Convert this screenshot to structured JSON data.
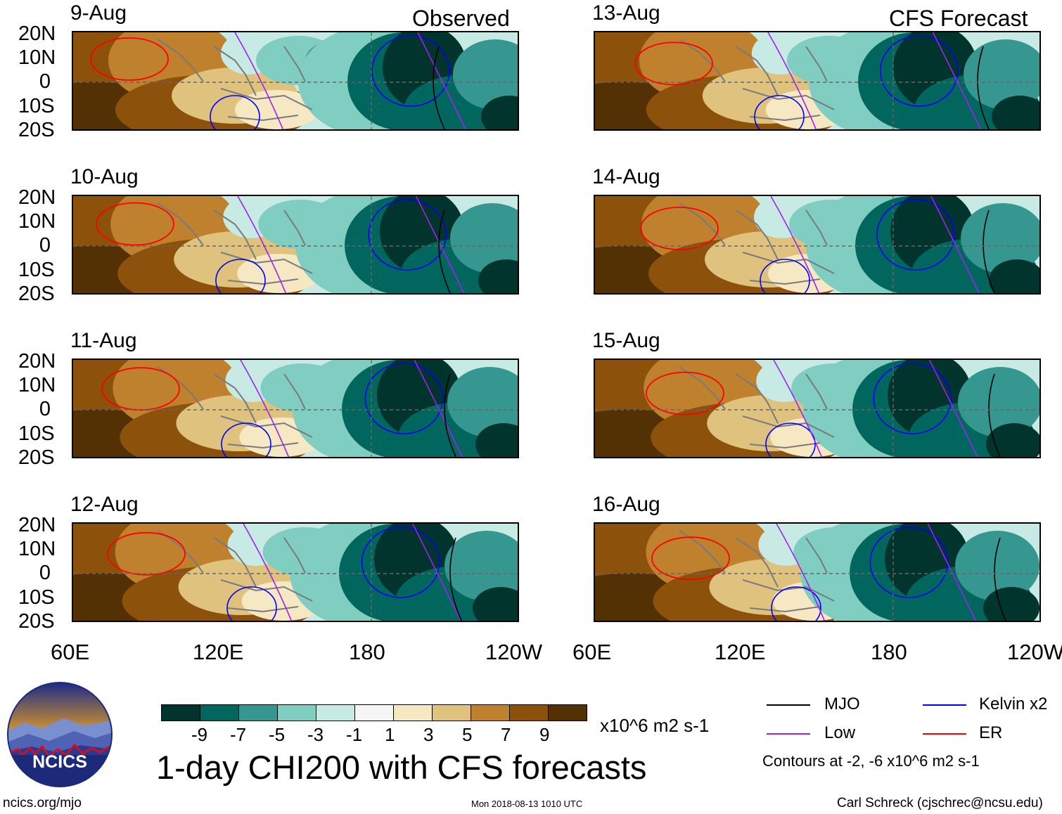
{
  "headers": {
    "observed": "Observed",
    "forecast": "CFS Forecast"
  },
  "panels": [
    {
      "date": "9-Aug",
      "col": 0,
      "row": 0,
      "shift": 0
    },
    {
      "date": "10-Aug",
      "col": 0,
      "row": 1,
      "shift": 8
    },
    {
      "date": "11-Aug",
      "col": 0,
      "row": 2,
      "shift": 16
    },
    {
      "date": "12-Aug",
      "col": 0,
      "row": 3,
      "shift": 24
    },
    {
      "date": "13-Aug",
      "col": 1,
      "row": 0,
      "shift": 32
    },
    {
      "date": "14-Aug",
      "col": 1,
      "row": 1,
      "shift": 40
    },
    {
      "date": "15-Aug",
      "col": 1,
      "row": 2,
      "shift": 48
    },
    {
      "date": "16-Aug",
      "col": 1,
      "row": 3,
      "shift": 56
    }
  ],
  "lat_labels": [
    "20N",
    "10N",
    "0",
    "10S",
    "20S"
  ],
  "lon_labels": [
    "60E",
    "120E",
    "180",
    "120W"
  ],
  "colorbar": {
    "colors": [
      "#00342c",
      "#00665e",
      "#35978f",
      "#80cdc1",
      "#c7eae5",
      "#f5f5f5",
      "#f6e8c3",
      "#dfc27d",
      "#bf812d",
      "#8c510a",
      "#543005"
    ],
    "labels": [
      "-9",
      "-7",
      "-5",
      "-3",
      "-1",
      "1",
      "3",
      "5",
      "7",
      "9"
    ],
    "units": "x10^6 m2 s-1"
  },
  "title": "1-day CHI200 with CFS forecasts",
  "legend": {
    "items": [
      {
        "label": "MJO",
        "color": "#000000"
      },
      {
        "label": "Kelvin x2",
        "color": "#0000ff"
      },
      {
        "label": "Low",
        "color": "#a020f0"
      },
      {
        "label": "ER",
        "color": "#ff0000"
      }
    ],
    "contours": "Contours at -2, -6 x10^6 m2 s-1"
  },
  "logo_text": "NCICS",
  "footer": {
    "url": "ncics.org/mjo",
    "timestamp": "Mon 2018-08-13 1010 UTC",
    "credit": "Carl Schreck (cjschrec@ncsu.edu)"
  }
}
